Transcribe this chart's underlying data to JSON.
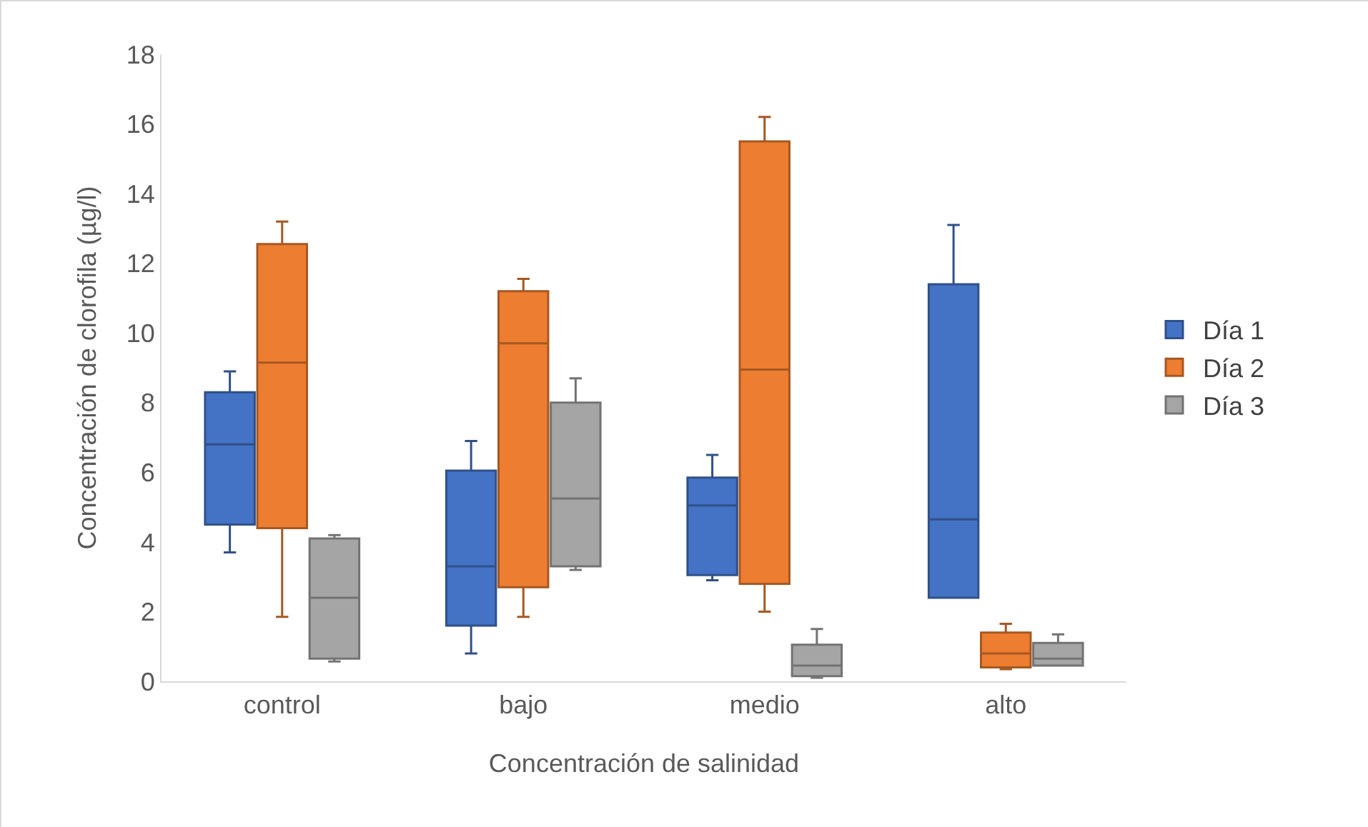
{
  "chart_data": {
    "type": "box",
    "xlabel": "Concentración de salinidad",
    "ylabel": "Concentración de clorofila (µg/l)",
    "categories": [
      "control",
      "bajo",
      "medio",
      "alto"
    ],
    "ylim": [
      0,
      18
    ],
    "yticks": [
      0,
      2,
      4,
      6,
      8,
      10,
      12,
      14,
      16,
      18
    ],
    "grid": false,
    "legend": "right",
    "series": [
      {
        "name": "Día 1",
        "color": "#4472c4",
        "boxes": [
          {
            "low": 3.7,
            "q1": 4.5,
            "median": 6.8,
            "q3": 8.3,
            "high": 8.9
          },
          {
            "low": 0.8,
            "q1": 1.6,
            "median": 3.3,
            "q3": 6.05,
            "high": 6.9
          },
          {
            "low": 2.9,
            "q1": 3.05,
            "median": 5.05,
            "q3": 5.85,
            "high": 6.5
          },
          {
            "low": 2.4,
            "q1": 2.4,
            "median": 4.65,
            "q3": 11.4,
            "high": 13.1
          }
        ]
      },
      {
        "name": "Día 2",
        "color": "#ed7d31",
        "boxes": [
          {
            "low": 1.85,
            "q1": 4.4,
            "median": 9.15,
            "q3": 12.55,
            "high": 13.2
          },
          {
            "low": 1.85,
            "q1": 2.7,
            "median": 9.7,
            "q3": 11.2,
            "high": 11.55
          },
          {
            "low": 2.0,
            "q1": 2.8,
            "median": 8.95,
            "q3": 15.5,
            "high": 16.2
          },
          {
            "low": 0.35,
            "q1": 0.4,
            "median": 0.8,
            "q3": 1.4,
            "high": 1.65
          }
        ]
      },
      {
        "name": "Día 3",
        "color": "#a5a5a5",
        "boxes": [
          {
            "low": 0.57,
            "q1": 0.65,
            "median": 2.4,
            "q3": 4.1,
            "high": 4.2
          },
          {
            "low": 3.2,
            "q1": 3.3,
            "median": 5.25,
            "q3": 8.0,
            "high": 8.7
          },
          {
            "low": 0.1,
            "q1": 0.15,
            "median": 0.45,
            "q3": 1.05,
            "high": 1.5
          },
          {
            "low": 0.45,
            "q1": 0.45,
            "median": 0.65,
            "q3": 1.1,
            "high": 1.35
          }
        ]
      }
    ]
  }
}
